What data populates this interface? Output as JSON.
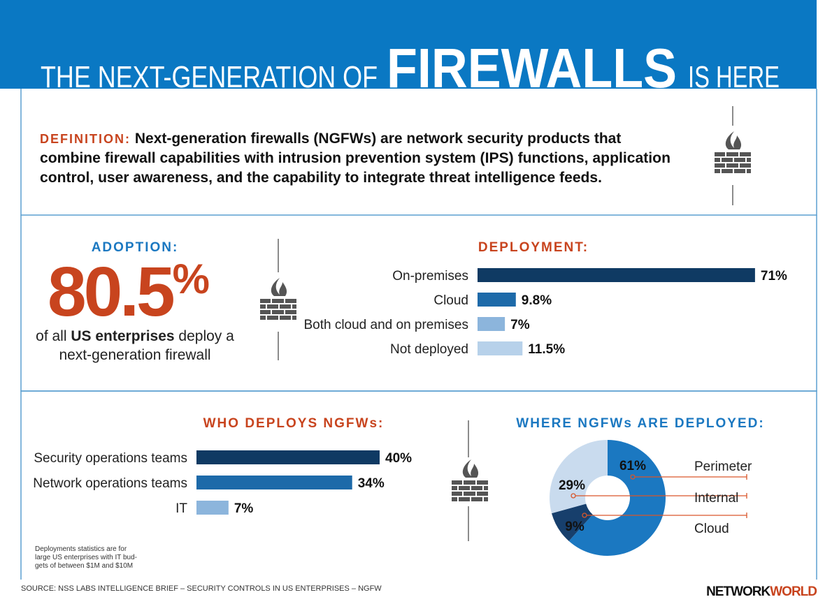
{
  "header": {
    "title_parts": [
      "THE NEXT-GENERATION OF",
      "FIREWALLS",
      "IS HERE"
    ]
  },
  "definition": {
    "label": "DEFINITION:",
    "lines": [
      "Next-generation firewalls (NGFWs) are network security products that",
      "combine firewall capabilities with intrusion prevention system (IPS) functions, application",
      "control, user awareness, and the capability to integrate threat intelligence feeds."
    ]
  },
  "adoption": {
    "title": "ADOPTION:",
    "figure": "80.5",
    "figure_unit": "%",
    "caption_lines": [
      [
        "of all ",
        "US enterprises",
        " deploy a"
      ],
      [
        "next-generation firewall"
      ]
    ]
  },
  "chart_data": [
    {
      "type": "bar",
      "title": "DEPLOYMENT:",
      "categories": [
        "On-premises",
        "Cloud",
        "Both cloud and on premises",
        "Not deployed"
      ],
      "values": [
        71,
        9.8,
        7,
        11.5
      ],
      "value_labels": [
        "71%",
        "9.8%",
        "7%",
        "11.5%"
      ],
      "colors": [
        "#0f3a63",
        "#1d6aa9",
        "#8cb5dc",
        "#b7d1ea"
      ]
    },
    {
      "type": "bar",
      "title": "WHO DEPLOYS NGFWs:",
      "categories": [
        "Security operations teams",
        "Network operations teams",
        "IT"
      ],
      "values": [
        40,
        34,
        7
      ],
      "value_labels": [
        "40%",
        "34%",
        "7%"
      ],
      "colors": [
        "#0f3a63",
        "#1d6aa9",
        "#8cb5dc"
      ]
    },
    {
      "type": "pie",
      "title": "WHERE NGFWs ARE DEPLOYED:",
      "categories": [
        "Perimeter",
        "Internal",
        "Cloud"
      ],
      "values": [
        61,
        29,
        9
      ],
      "value_labels": [
        "61%",
        "29%",
        "9%"
      ],
      "colors": [
        "#1b78c1",
        "#c9dbee",
        "#173f6c"
      ]
    }
  ],
  "footnote": [
    "Deployments statistics are for",
    "large US enterprises with IT bud-",
    "gets of between $1M and $10M"
  ],
  "source": "SOURCE: NSS LABS INTELLIGENCE BRIEF – SECURITY CONTROLS IN US ENTERPRISES – NGFW",
  "brand": [
    "NETWORK",
    "WORLD"
  ]
}
